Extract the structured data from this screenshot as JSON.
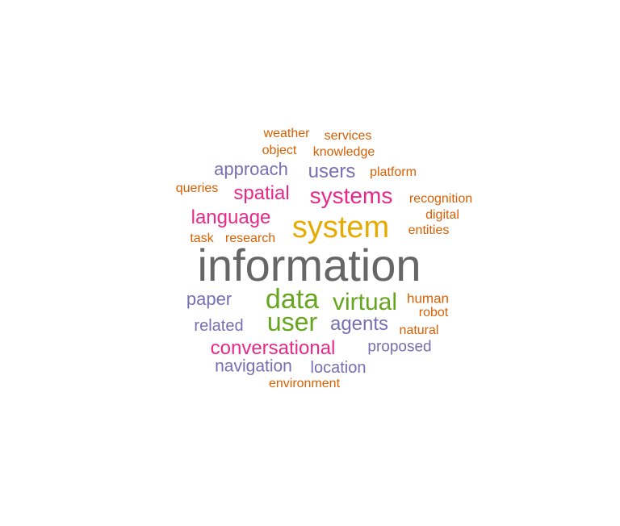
{
  "colors": {
    "gray": "#666666",
    "gold": "#e6ab02",
    "green": "#66a61e",
    "pink": "#e7298a",
    "purple": "#7570b3",
    "orange": "#d95f02"
  },
  "words": [
    {
      "text": "information",
      "color": "gray"
    },
    {
      "text": "system",
      "color": "gold"
    },
    {
      "text": "data",
      "color": "green"
    },
    {
      "text": "user",
      "color": "green"
    },
    {
      "text": "virtual",
      "color": "green"
    },
    {
      "text": "systems",
      "color": "pink"
    },
    {
      "text": "spatial",
      "color": "pink"
    },
    {
      "text": "language",
      "color": "pink"
    },
    {
      "text": "conversational",
      "color": "pink"
    },
    {
      "text": "approach",
      "color": "purple"
    },
    {
      "text": "users",
      "color": "purple"
    },
    {
      "text": "paper",
      "color": "purple"
    },
    {
      "text": "agents",
      "color": "purple"
    },
    {
      "text": "related",
      "color": "purple"
    },
    {
      "text": "proposed",
      "color": "purple"
    },
    {
      "text": "navigation",
      "color": "purple"
    },
    {
      "text": "location",
      "color": "purple"
    },
    {
      "text": "weather",
      "color": "orange"
    },
    {
      "text": "services",
      "color": "orange"
    },
    {
      "text": "object",
      "color": "orange"
    },
    {
      "text": "knowledge",
      "color": "orange"
    },
    {
      "text": "platform",
      "color": "orange"
    },
    {
      "text": "queries",
      "color": "orange"
    },
    {
      "text": "recognition",
      "color": "orange"
    },
    {
      "text": "digital",
      "color": "orange"
    },
    {
      "text": "entities",
      "color": "orange"
    },
    {
      "text": "task",
      "color": "orange"
    },
    {
      "text": "research",
      "color": "orange"
    },
    {
      "text": "human",
      "color": "orange"
    },
    {
      "text": "robot",
      "color": "orange"
    },
    {
      "text": "natural",
      "color": "orange"
    },
    {
      "text": "environment",
      "color": "orange"
    }
  ]
}
